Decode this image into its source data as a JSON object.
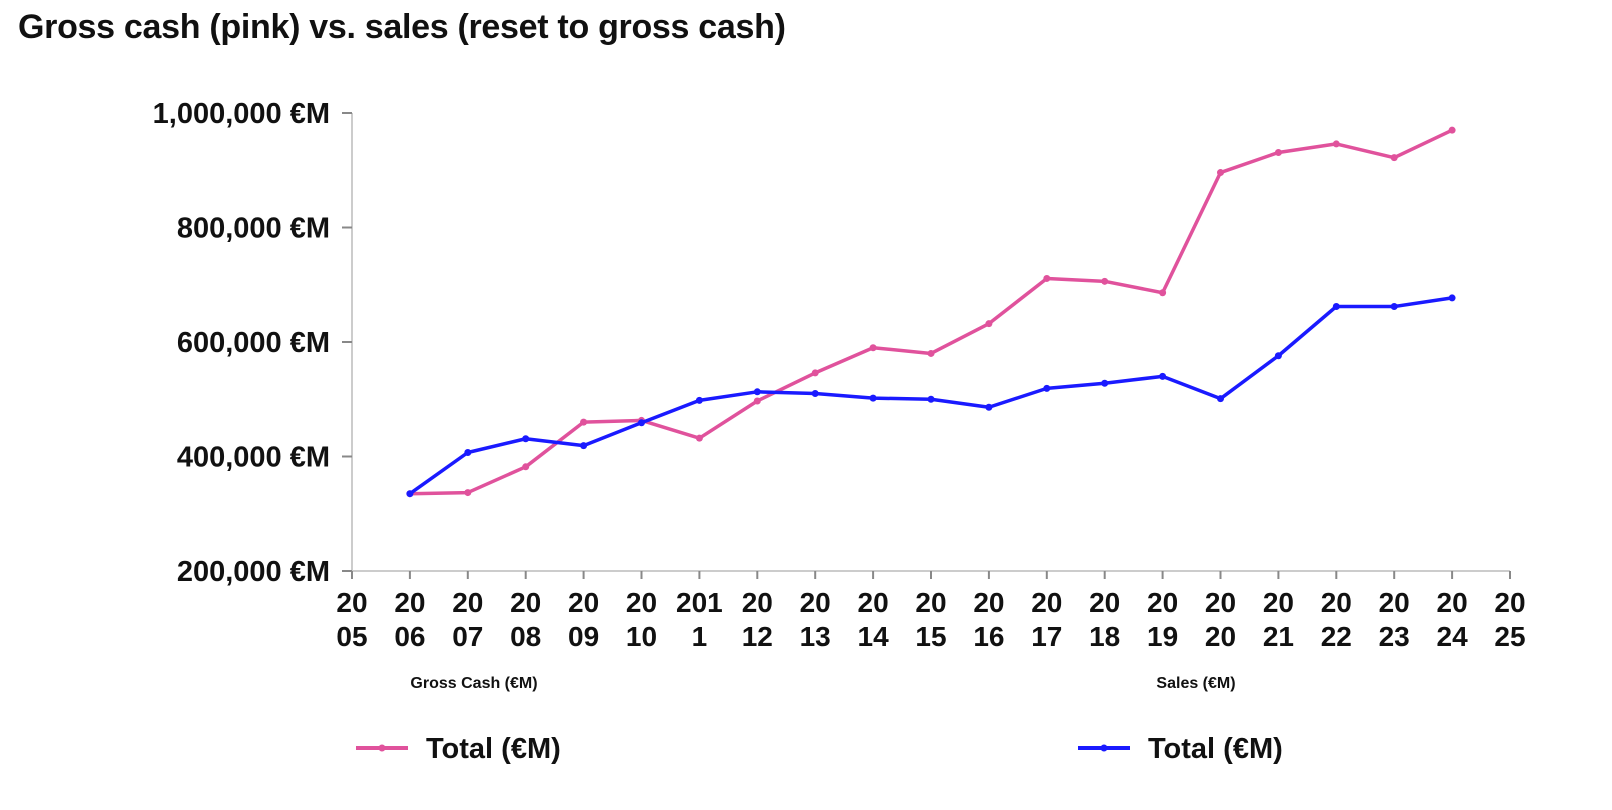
{
  "title": "Gross cash (pink) vs. sales (reset to gross cash)",
  "chart_data": {
    "type": "line",
    "title": "Gross cash (pink) vs. sales (reset to gross cash)",
    "xlabel": "",
    "ylabel": "",
    "x_tick_labels": [
      [
        "20",
        "05"
      ],
      [
        "20",
        "06"
      ],
      [
        "20",
        "07"
      ],
      [
        "20",
        "08"
      ],
      [
        "20",
        "09"
      ],
      [
        "20",
        "10"
      ],
      [
        "201",
        "1"
      ],
      [
        "20",
        "12"
      ],
      [
        "20",
        "13"
      ],
      [
        "20",
        "14"
      ],
      [
        "20",
        "15"
      ],
      [
        "20",
        "16"
      ],
      [
        "20",
        "17"
      ],
      [
        "20",
        "18"
      ],
      [
        "20",
        "19"
      ],
      [
        "20",
        "20"
      ],
      [
        "20",
        "21"
      ],
      [
        "20",
        "22"
      ],
      [
        "20",
        "23"
      ],
      [
        "20",
        "24"
      ],
      [
        "20",
        "25"
      ]
    ],
    "x": [
      2006,
      2007,
      2008,
      2009,
      2010,
      2011,
      2012,
      2013,
      2014,
      2015,
      2016,
      2017,
      2018,
      2019,
      2020,
      2021,
      2022,
      2023,
      2024
    ],
    "xlim": [
      2005,
      2025
    ],
    "y_ticks": [
      200000,
      400000,
      600000,
      800000,
      1000000
    ],
    "y_tick_labels": [
      "200,000 €M",
      "400,000 €M",
      "600,000 €M",
      "800,000 €M",
      "1,000,000 €M"
    ],
    "ylim": [
      200000,
      1000000
    ],
    "grid": false,
    "group_captions": [
      "Gross Cash (€M)",
      "Sales (€M)"
    ],
    "series": [
      {
        "name": "Total (€M)",
        "group": "Gross Cash (€M)",
        "color": "#e0529c",
        "values": [
          335000,
          337000,
          382000,
          460000,
          463000,
          432000,
          497000,
          546000,
          590000,
          580000,
          632000,
          711000,
          706000,
          686000,
          896000,
          931000,
          946000,
          922000,
          970000
        ]
      },
      {
        "name": "Total (€M)",
        "group": "Sales (€M)",
        "color": "#1a1aff",
        "values": [
          335000,
          407000,
          431000,
          419000,
          459000,
          498000,
          513000,
          510000,
          502000,
          500000,
          486000,
          519000,
          528000,
          540000,
          501000,
          576000,
          662000,
          662000,
          677000
        ]
      }
    ],
    "legend": [
      "Total (€M)",
      "Total (€M)"
    ],
    "legend_position": "bottom"
  }
}
